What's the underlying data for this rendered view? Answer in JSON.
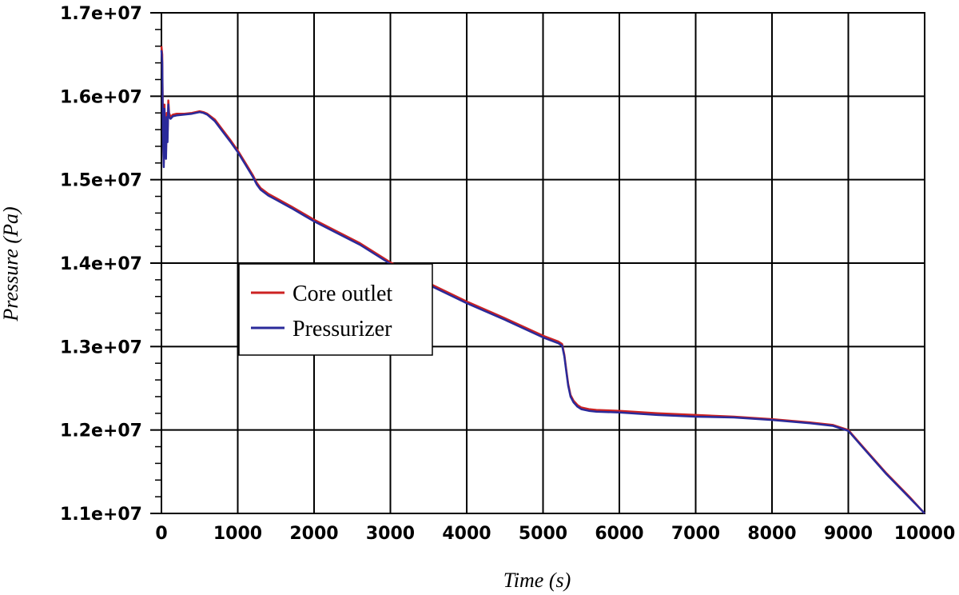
{
  "chart_data": {
    "type": "line",
    "title": "",
    "xlabel": "Time (s)",
    "ylabel": "Pressure (Pa)",
    "xlim": [
      0,
      10000
    ],
    "ylim": [
      11000000,
      17000000
    ],
    "x_ticks": [
      0,
      1000,
      2000,
      3000,
      4000,
      5000,
      6000,
      7000,
      8000,
      9000,
      10000
    ],
    "x_tick_labels": [
      "0",
      "1000",
      "2000",
      "3000",
      "4000",
      "5000",
      "6000",
      "7000",
      "8000",
      "9000",
      "10000"
    ],
    "y_ticks": [
      11000000,
      12000000,
      13000000,
      14000000,
      15000000,
      16000000,
      17000000
    ],
    "y_tick_labels": [
      "1.1e+07",
      "1.2e+07",
      "1.3e+07",
      "1.4e+07",
      "1.5e+07",
      "1.6e+07",
      "1.7e+07"
    ],
    "grid": true,
    "legend_position": "center-left",
    "series": [
      {
        "name": "Core outlet",
        "color": "#cc2222",
        "x": [
          0,
          10,
          20,
          30,
          40,
          50,
          60,
          70,
          80,
          90,
          100,
          120,
          150,
          200,
          300,
          400,
          500,
          550,
          600,
          700,
          800,
          900,
          1000,
          1100,
          1200,
          1250,
          1300,
          1400,
          1500,
          1700,
          2000,
          2300,
          2600,
          3000,
          3500,
          4000,
          4500,
          5000,
          5200,
          5250,
          5280,
          5300,
          5330,
          5360,
          5400,
          5450,
          5500,
          5600,
          5700,
          6000,
          6500,
          7000,
          7500,
          8000,
          8500,
          8800,
          9000,
          9200,
          9500,
          9800,
          10000
        ],
        "y": [
          16600000,
          16500000,
          15600000,
          15200000,
          15900000,
          15400000,
          15300000,
          15800000,
          15500000,
          15950000,
          15800000,
          15750000,
          15780000,
          15790000,
          15790000,
          15800000,
          15820000,
          15810000,
          15790000,
          15720000,
          15600000,
          15480000,
          15350000,
          15200000,
          15050000,
          14960000,
          14900000,
          14830000,
          14780000,
          14680000,
          14520000,
          14380000,
          14240000,
          14010000,
          13760000,
          13540000,
          13340000,
          13130000,
          13060000,
          13030000,
          12900000,
          12750000,
          12550000,
          12420000,
          12350000,
          12300000,
          12270000,
          12250000,
          12240000,
          12230000,
          12200000,
          12180000,
          12160000,
          12130000,
          12090000,
          12060000,
          12000000,
          11790000,
          11480000,
          11200000,
          11000000
        ]
      },
      {
        "name": "Pressurizer",
        "color": "#2a2a9a",
        "x": [
          0,
          10,
          20,
          30,
          40,
          50,
          60,
          70,
          80,
          90,
          100,
          120,
          150,
          200,
          300,
          400,
          500,
          550,
          600,
          700,
          800,
          900,
          1000,
          1100,
          1200,
          1250,
          1300,
          1400,
          1500,
          1700,
          2000,
          2300,
          2600,
          3000,
          3500,
          4000,
          4500,
          5000,
          5200,
          5250,
          5280,
          5300,
          5330,
          5360,
          5400,
          5450,
          5500,
          5600,
          5700,
          6000,
          6500,
          7000,
          7500,
          8000,
          8500,
          8800,
          9000,
          9200,
          9500,
          9800,
          10000
        ],
        "y": [
          16550000,
          16400000,
          15550000,
          15150000,
          15850000,
          15350000,
          15250000,
          15750000,
          15450000,
          15900000,
          15750000,
          15730000,
          15760000,
          15770000,
          15780000,
          15790000,
          15810000,
          15800000,
          15780000,
          15700000,
          15580000,
          15460000,
          15330000,
          15180000,
          15030000,
          14940000,
          14880000,
          14810000,
          14760000,
          14660000,
          14500000,
          14360000,
          14220000,
          13990000,
          13740000,
          13520000,
          13320000,
          13110000,
          13040000,
          13010000,
          12880000,
          12730000,
          12530000,
          12400000,
          12330000,
          12280000,
          12250000,
          12230000,
          12220000,
          12210000,
          12180000,
          12160000,
          12150000,
          12120000,
          12080000,
          12050000,
          11990000,
          11780000,
          11470000,
          11190000,
          11000000
        ]
      }
    ]
  }
}
